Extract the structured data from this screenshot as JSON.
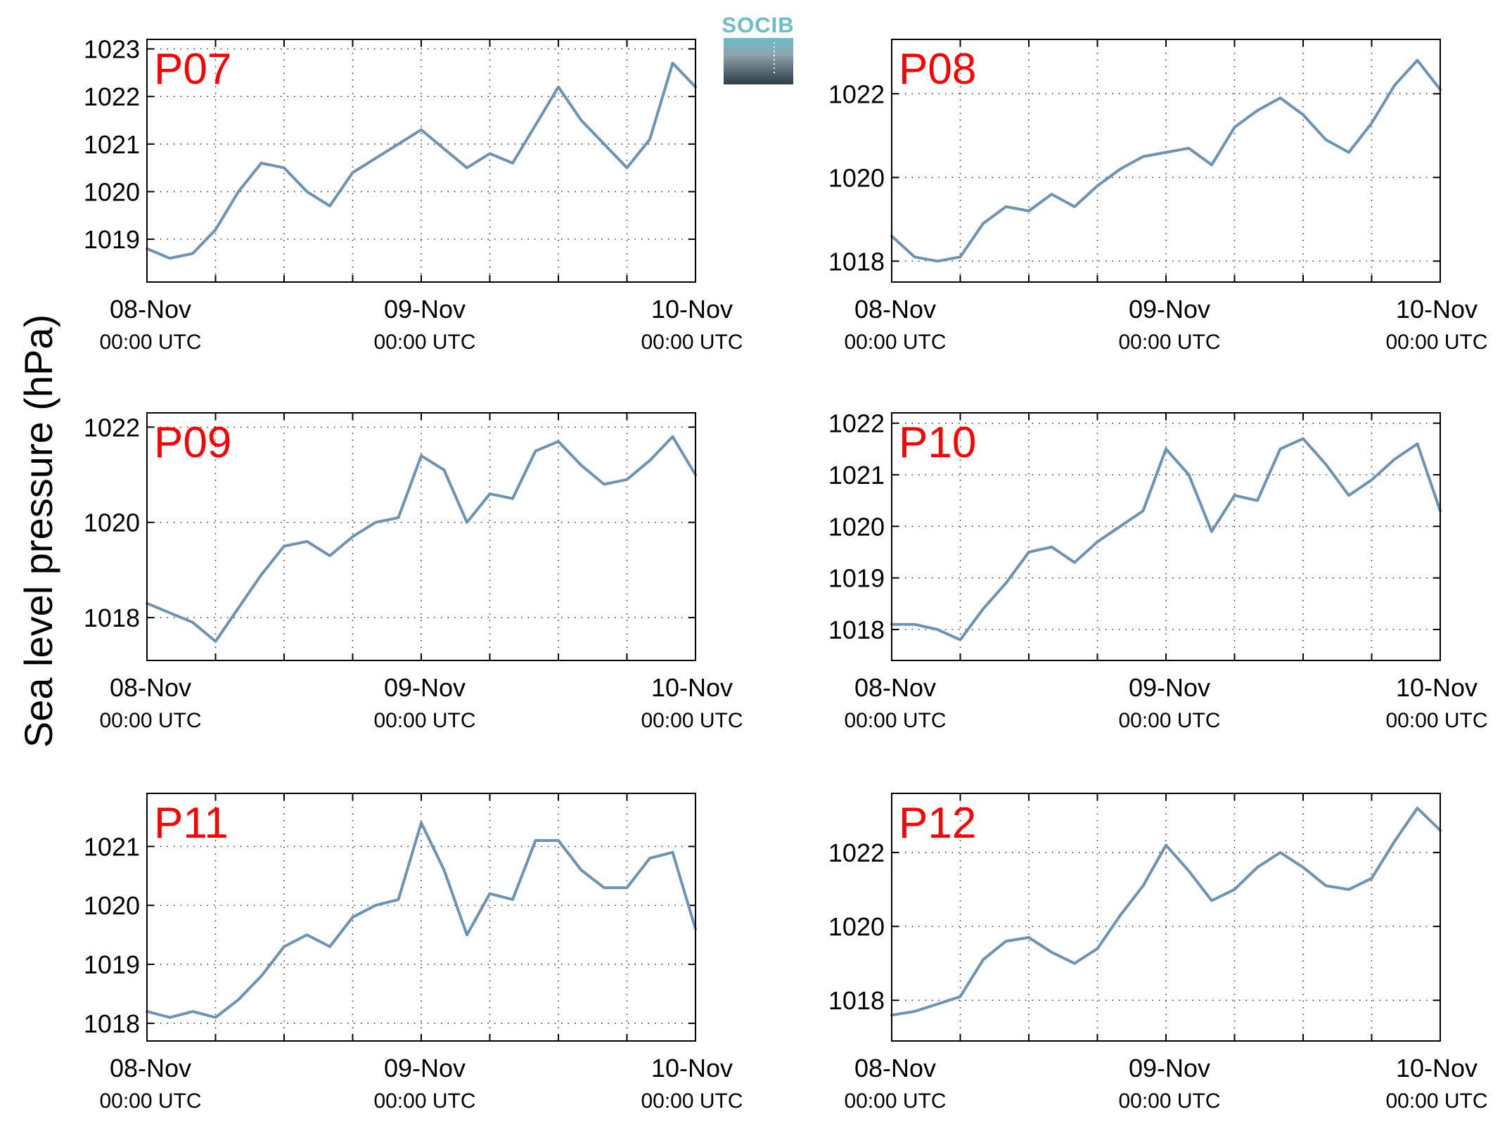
{
  "figure": {
    "ylabel": "Sea level pressure (hPa)",
    "logo_text": "SOCIB",
    "line_color": "#6a93b6",
    "label_color": "#ff0000"
  },
  "chart_data": [
    {
      "type": "line",
      "title": "P07",
      "ylim": [
        1018.1,
        1023.2
      ],
      "yticks": [
        1019,
        1020,
        1021,
        1022,
        1023
      ],
      "xticks": [
        {
          "date": "08-Nov",
          "time": "00:00 UTC"
        },
        {
          "date": "09-Nov",
          "time": "00:00 UTC"
        },
        {
          "date": "10-Nov",
          "time": "00:00 UTC"
        }
      ],
      "grid": true,
      "x_hours": [
        0,
        2,
        4,
        6,
        8,
        10,
        12,
        14,
        16,
        18,
        20,
        22,
        24,
        26,
        28,
        30,
        32,
        34,
        36,
        38,
        40,
        42,
        44,
        46,
        48
      ],
      "values": [
        1018.8,
        1018.6,
        1018.7,
        1019.2,
        1020.0,
        1020.6,
        1020.5,
        1020.0,
        1019.7,
        1020.4,
        1020.7,
        1021.0,
        1021.3,
        1020.9,
        1020.5,
        1020.8,
        1020.6,
        1021.4,
        1022.2,
        1021.5,
        1021.0,
        1020.5,
        1021.1,
        1022.7,
        1022.2
      ]
    },
    {
      "type": "line",
      "title": "P08",
      "ylim": [
        1017.5,
        1023.3
      ],
      "yticks": [
        1018,
        1020,
        1022
      ],
      "xticks": [
        {
          "date": "08-Nov",
          "time": "00:00 UTC"
        },
        {
          "date": "09-Nov",
          "time": "00:00 UTC"
        },
        {
          "date": "10-Nov",
          "time": "00:00 UTC"
        }
      ],
      "grid": true,
      "x_hours": [
        0,
        2,
        4,
        6,
        8,
        10,
        12,
        14,
        16,
        18,
        20,
        22,
        24,
        26,
        28,
        30,
        32,
        34,
        36,
        38,
        40,
        42,
        44,
        46,
        48
      ],
      "values": [
        1018.6,
        1018.1,
        1018.0,
        1018.1,
        1018.9,
        1019.3,
        1019.2,
        1019.6,
        1019.3,
        1019.8,
        1020.2,
        1020.5,
        1020.6,
        1020.7,
        1020.3,
        1021.2,
        1021.6,
        1021.9,
        1021.5,
        1020.9,
        1020.6,
        1021.3,
        1022.2,
        1022.8,
        1022.1
      ]
    },
    {
      "type": "line",
      "title": "P09",
      "ylim": [
        1017.1,
        1022.3
      ],
      "yticks": [
        1018,
        1020,
        1022
      ],
      "xticks": [
        {
          "date": "08-Nov",
          "time": "00:00 UTC"
        },
        {
          "date": "09-Nov",
          "time": "00:00 UTC"
        },
        {
          "date": "10-Nov",
          "time": "00:00 UTC"
        }
      ],
      "grid": true,
      "x_hours": [
        0,
        2,
        4,
        6,
        8,
        10,
        12,
        14,
        16,
        18,
        20,
        22,
        24,
        26,
        28,
        30,
        32,
        34,
        36,
        38,
        40,
        42,
        44,
        46,
        48
      ],
      "values": [
        1018.3,
        1018.1,
        1017.9,
        1017.5,
        1018.2,
        1018.9,
        1019.5,
        1019.6,
        1019.3,
        1019.7,
        1020.0,
        1020.1,
        1021.4,
        1021.1,
        1020.0,
        1020.6,
        1020.5,
        1021.5,
        1021.7,
        1021.2,
        1020.8,
        1020.9,
        1021.3,
        1021.8,
        1021.0
      ]
    },
    {
      "type": "line",
      "title": "P10",
      "ylim": [
        1017.4,
        1022.2
      ],
      "yticks": [
        1018,
        1019,
        1020,
        1021,
        1022
      ],
      "xticks": [
        {
          "date": "08-Nov",
          "time": "00:00 UTC"
        },
        {
          "date": "09-Nov",
          "time": "00:00 UTC"
        },
        {
          "date": "10-Nov",
          "time": "00:00 UTC"
        }
      ],
      "grid": true,
      "x_hours": [
        0,
        2,
        4,
        6,
        8,
        10,
        12,
        14,
        16,
        18,
        20,
        22,
        24,
        26,
        28,
        30,
        32,
        34,
        36,
        38,
        40,
        42,
        44,
        46,
        48
      ],
      "values": [
        1018.1,
        1018.1,
        1018.0,
        1017.8,
        1018.4,
        1018.9,
        1019.5,
        1019.6,
        1019.3,
        1019.7,
        1020.0,
        1020.3,
        1021.5,
        1021.0,
        1019.9,
        1020.6,
        1020.5,
        1021.5,
        1021.7,
        1021.2,
        1020.6,
        1020.9,
        1021.3,
        1021.6,
        1020.3
      ]
    },
    {
      "type": "line",
      "title": "P11",
      "ylim": [
        1017.7,
        1021.9
      ],
      "yticks": [
        1018,
        1019,
        1020,
        1021
      ],
      "xticks": [
        {
          "date": "08-Nov",
          "time": "00:00 UTC"
        },
        {
          "date": "09-Nov",
          "time": "00:00 UTC"
        },
        {
          "date": "10-Nov",
          "time": "00:00 UTC"
        }
      ],
      "grid": true,
      "x_hours": [
        0,
        2,
        4,
        6,
        8,
        10,
        12,
        14,
        16,
        18,
        20,
        22,
        24,
        26,
        28,
        30,
        32,
        34,
        36,
        38,
        40,
        42,
        44,
        46,
        48
      ],
      "values": [
        1018.2,
        1018.1,
        1018.2,
        1018.1,
        1018.4,
        1018.8,
        1019.3,
        1019.5,
        1019.3,
        1019.8,
        1020.0,
        1020.1,
        1021.4,
        1020.6,
        1019.5,
        1020.2,
        1020.1,
        1021.1,
        1021.1,
        1020.6,
        1020.3,
        1020.3,
        1020.8,
        1020.9,
        1019.6
      ]
    },
    {
      "type": "line",
      "title": "P12",
      "ylim": [
        1016.9,
        1023.6
      ],
      "yticks": [
        1018,
        1020,
        1022
      ],
      "xticks": [
        {
          "date": "08-Nov",
          "time": "00:00 UTC"
        },
        {
          "date": "09-Nov",
          "time": "00:00 UTC"
        },
        {
          "date": "10-Nov",
          "time": "00:00 UTC"
        }
      ],
      "grid": true,
      "x_hours": [
        0,
        2,
        4,
        6,
        8,
        10,
        12,
        14,
        16,
        18,
        20,
        22,
        24,
        26,
        28,
        30,
        32,
        34,
        36,
        38,
        40,
        42,
        44,
        46,
        48
      ],
      "values": [
        1017.6,
        1017.7,
        1017.9,
        1018.1,
        1019.1,
        1019.6,
        1019.7,
        1019.3,
        1019.0,
        1019.4,
        1020.3,
        1021.1,
        1022.2,
        1021.5,
        1020.7,
        1021.0,
        1021.6,
        1022.0,
        1021.6,
        1021.1,
        1021.0,
        1021.3,
        1022.3,
        1023.2,
        1022.6
      ]
    }
  ]
}
